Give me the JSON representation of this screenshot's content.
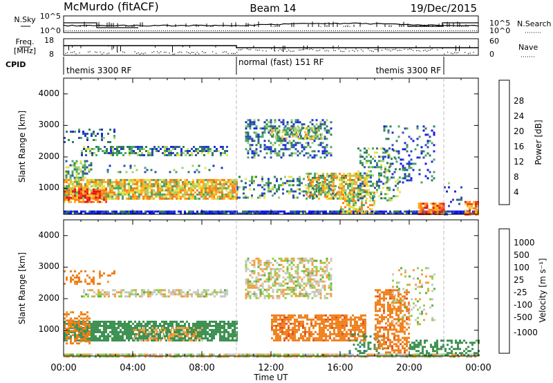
{
  "header": {
    "radar": "McMurdo (fitACF)",
    "beam": "Beam 14",
    "date": "19/Dec/2015"
  },
  "status_panels": {
    "nsky_label": "N.Sky",
    "nsearch_label": "N.Search",
    "freq_label_1": "Freq.",
    "freq_label_2": "[MHz]",
    "nave_label": "Nave",
    "cpid_label": "CPID",
    "noise_ticks_left": [
      "10^5",
      "10^0"
    ],
    "noise_ticks_right": [
      "10^5",
      "10^0"
    ],
    "freq_ticks": [
      "18",
      "8"
    ],
    "nave_ticks": [
      "60",
      "0"
    ],
    "cpid_segments": [
      {
        "label": "themis 3300 RF",
        "start_hour": 0,
        "end_hour": 10
      },
      {
        "label": "normal (fast) 151 RF",
        "start_hour": 10,
        "end_hour": 22
      },
      {
        "label": "themis 3300 RF",
        "start_hour": 22,
        "end_hour": 24
      }
    ]
  },
  "axes": {
    "xlabel": "Time UT",
    "x_ticks": [
      "00:00",
      "04:00",
      "08:00",
      "12:00",
      "16:00",
      "20:00",
      "00:00"
    ],
    "ylabel_power": "Slant Range [km]",
    "ylabel_velocity": "Slant Range [km]",
    "y_ticks": [
      "4000",
      "3000",
      "2000",
      "1000"
    ]
  },
  "colorbars": {
    "power": {
      "label": "Power [dB]",
      "ticks": [
        "28",
        "24",
        "20",
        "16",
        "12",
        "8",
        "4"
      ],
      "colors": [
        "#e21a1a",
        "#ff3a22",
        "#ff7f18",
        "#f9b21c",
        "#e9e14a",
        "#9fd06e",
        "#49a564",
        "#2f7d5a",
        "#2b4fb4",
        "#1d2bd9",
        "#1410f0"
      ]
    },
    "velocity": {
      "label": "Velocity [m s⁻¹]",
      "ticks": [
        "1000",
        "500",
        "100",
        "25",
        "-25",
        "-100",
        "-500",
        "-1000"
      ],
      "colors": [
        "#2036b8",
        "#2c6bb0",
        "#3a8f4f",
        "#5fb13e",
        "#8fd14a",
        "#c8c8c0",
        "#f2a13a",
        "#f07f1a",
        "#e84c18",
        "#e0201a"
      ]
    }
  },
  "chart_data": [
    {
      "type": "heatmap",
      "title": "Power",
      "xlabel": "Time UT",
      "ylabel": "Slant Range [km]",
      "xlim_hours": [
        0,
        24
      ],
      "ylim_km": [
        180,
        4500
      ],
      "colorbar_label": "Power [dB]",
      "colorbar_range_db": [
        0,
        32
      ],
      "regions": [
        {
          "t0": 0.0,
          "t1": 24.0,
          "r0": 180,
          "r1": 300,
          "value": 6,
          "density": 0.85
        },
        {
          "t0": 0.0,
          "t1": 10.0,
          "r0": 700,
          "r1": 1300,
          "value": 21,
          "density": 0.85
        },
        {
          "t0": 0.0,
          "t1": 2.5,
          "r0": 600,
          "r1": 1000,
          "value": 27,
          "density": 0.7
        },
        {
          "t0": 0.1,
          "t1": 1.6,
          "r0": 1350,
          "r1": 1900,
          "value": 14,
          "density": 0.6
        },
        {
          "t0": 1.0,
          "t1": 9.5,
          "r0": 2050,
          "r1": 2350,
          "value": 12,
          "density": 0.55
        },
        {
          "t0": 0.0,
          "t1": 3.0,
          "r0": 2500,
          "r1": 2900,
          "value": 10,
          "density": 0.25
        },
        {
          "t0": 2.5,
          "t1": 9.5,
          "r0": 1550,
          "r1": 1750,
          "value": 12,
          "density": 0.15
        },
        {
          "t0": 10.5,
          "t1": 15.5,
          "r0": 2000,
          "r1": 3200,
          "value": 11,
          "density": 0.4
        },
        {
          "t0": 12.0,
          "t1": 15.0,
          "r0": 2600,
          "r1": 2950,
          "value": 17,
          "density": 0.5
        },
        {
          "t0": 10.0,
          "t1": 16.0,
          "r0": 700,
          "r1": 1400,
          "value": 13,
          "density": 0.3
        },
        {
          "t0": 14.0,
          "t1": 17.5,
          "r0": 700,
          "r1": 1500,
          "value": 19,
          "density": 0.65
        },
        {
          "t0": 16.0,
          "t1": 18.0,
          "r0": 200,
          "r1": 900,
          "value": 21,
          "density": 0.5
        },
        {
          "t0": 17.0,
          "t1": 19.5,
          "r0": 600,
          "r1": 2300,
          "value": 14,
          "density": 0.35
        },
        {
          "t0": 18.5,
          "t1": 21.5,
          "r0": 1200,
          "r1": 3000,
          "value": 9,
          "density": 0.2
        },
        {
          "t0": 20.5,
          "t1": 22.0,
          "r0": 200,
          "r1": 550,
          "value": 28,
          "density": 0.8
        },
        {
          "t0": 23.2,
          "t1": 24.0,
          "r0": 200,
          "r1": 600,
          "value": 25,
          "density": 0.7
        },
        {
          "t0": 22.0,
          "t1": 23.0,
          "r0": 200,
          "r1": 1200,
          "value": 10,
          "density": 0.15
        }
      ]
    },
    {
      "type": "heatmap",
      "title": "Velocity",
      "xlabel": "Time UT",
      "ylabel": "Slant Range [km]",
      "xlim_hours": [
        0,
        24
      ],
      "ylim_km": [
        180,
        4500
      ],
      "colorbar_label": "Velocity [m s⁻¹]",
      "colorbar_range_ms": [
        -1000,
        1000
      ],
      "regions": [
        {
          "t0": 0.0,
          "t1": 24.0,
          "r0": 180,
          "r1": 260,
          "value": 0,
          "density": 0.8
        },
        {
          "t0": 0.0,
          "t1": 10.0,
          "r0": 700,
          "r1": 1300,
          "value": 200,
          "density": 0.8
        },
        {
          "t0": 4.0,
          "t1": 8.0,
          "r0": 650,
          "r1": 1100,
          "value": -60,
          "density": 0.35
        },
        {
          "t0": 0.0,
          "t1": 1.5,
          "r0": 600,
          "r1": 1600,
          "value": -150,
          "density": 0.5
        },
        {
          "t0": 1.0,
          "t1": 9.5,
          "r0": 2050,
          "r1": 2300,
          "value": 0,
          "density": 0.6
        },
        {
          "t0": 0.0,
          "t1": 3.0,
          "r0": 2500,
          "r1": 2900,
          "value": -150,
          "density": 0.25
        },
        {
          "t0": 10.5,
          "t1": 15.5,
          "r0": 2000,
          "r1": 3300,
          "value": 0,
          "density": 0.55
        },
        {
          "t0": 12.0,
          "t1": 17.5,
          "r0": 700,
          "r1": 1500,
          "value": -250,
          "density": 0.7
        },
        {
          "t0": 16.5,
          "t1": 18.5,
          "r0": 250,
          "r1": 900,
          "value": 250,
          "density": 0.35
        },
        {
          "t0": 18.0,
          "t1": 20.0,
          "r0": 300,
          "r1": 2300,
          "value": -250,
          "density": 0.55
        },
        {
          "t0": 20.0,
          "t1": 24.0,
          "r0": 200,
          "r1": 700,
          "value": 150,
          "density": 0.35
        },
        {
          "t0": 19.0,
          "t1": 21.5,
          "r0": 1200,
          "r1": 3000,
          "value": 0,
          "density": 0.15
        }
      ]
    }
  ]
}
